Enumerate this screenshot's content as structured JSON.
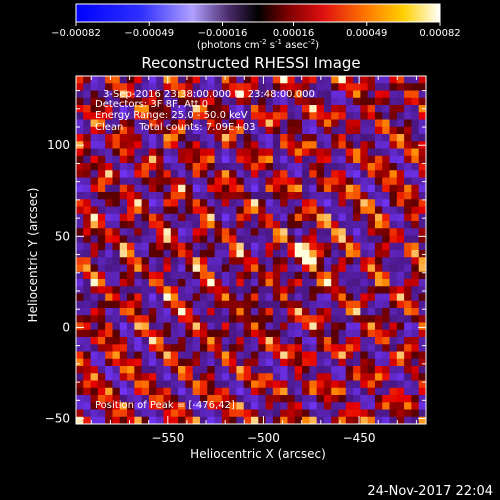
{
  "chart_data": {
    "type": "heatmap",
    "title": "Reconstructed RHESSI Image",
    "xlabel": "Heliocentric X (arcsec)",
    "ylabel": "Heliocentric Y (arcsec)",
    "xlim": [
      -598,
      -415
    ],
    "ylim": [
      -53,
      138
    ],
    "xticks": [
      -550,
      -500,
      -450
    ],
    "yticks": [
      -50,
      0,
      50,
      100
    ],
    "colorbar": {
      "colormap": "hot-with-negative-blues",
      "range": [
        -0.00082,
        0.00082
      ],
      "tick_labels": [
        "-0.00082",
        "-0.00049",
        "-0.00016",
        "0.00016",
        "0.00049",
        "0.00082"
      ],
      "unit_label": "(photons cm-2 s-1 asec-2)",
      "position": "top"
    },
    "annotations": [
      "3-Sep-2016 23:38:00.000 to 23:48:00.000",
      "Detectors: 3F 8F, Att 0",
      "Energy Range: 25.0 - 50.0 keV",
      "Clean     Total counts: 7.09E+03"
    ],
    "peak_label": "Position of Peak = [-476,42]",
    "peak": {
      "x": -476,
      "y": 42
    },
    "grid": false
  },
  "footer": {
    "date": "24-Nov-2017 22:04"
  }
}
